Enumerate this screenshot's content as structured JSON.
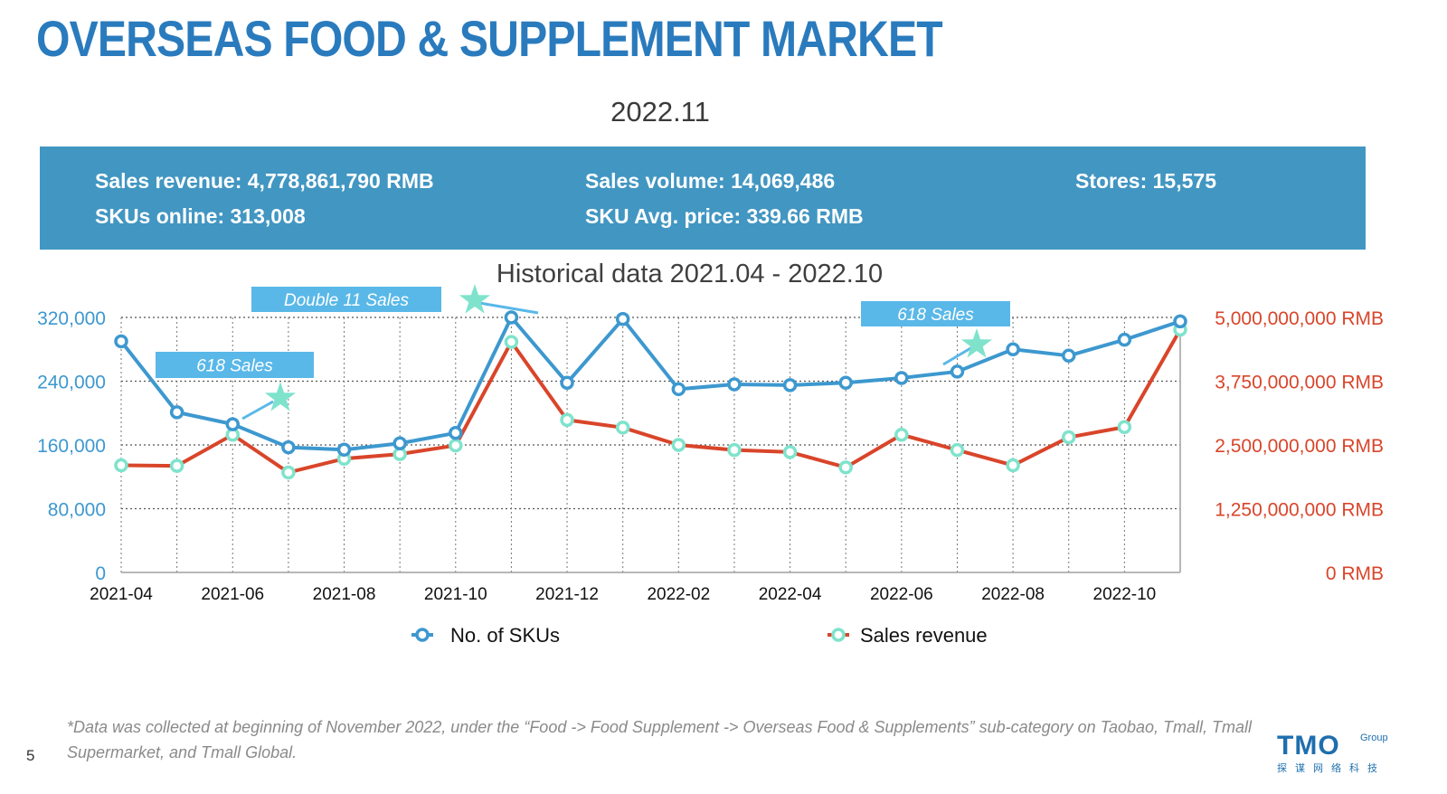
{
  "header": {
    "title": "OVERSEAS FOOD & SUPPLEMENT MARKET",
    "period": "2022.11"
  },
  "stats": {
    "sales_revenue": "Sales revenue: 4,778,861,790 RMB",
    "sales_volume": "Sales volume: 14,069,486",
    "stores": "Stores: 15,575",
    "skus_online": "SKUs online: 313,008",
    "sku_avg_price": "SKU Avg. price: 339.66 RMB"
  },
  "chart_data": {
    "type": "line",
    "title": "Historical data 2021.04 - 2022.10",
    "x": [
      "2021-04",
      "2021-05",
      "2021-06",
      "2021-07",
      "2021-08",
      "2021-09",
      "2021-10",
      "2021-11",
      "2021-12",
      "2022-01",
      "2022-02",
      "2022-03",
      "2022-04",
      "2022-05",
      "2022-06",
      "2022-07",
      "2022-08",
      "2022-09",
      "2022-10",
      "2022-11"
    ],
    "x_tick_labels": [
      "2021-04",
      "2021-06",
      "2021-08",
      "2021-10",
      "2021-12",
      "2022-02",
      "2022-04",
      "2022-06",
      "2022-08",
      "2022-10"
    ],
    "series": [
      {
        "name": "No. of SKUs",
        "axis": "left",
        "color": "#3d98cf",
        "marker_fill": "#ffffff",
        "values": [
          290000,
          201000,
          186000,
          157000,
          154000,
          162000,
          175000,
          320000,
          238000,
          318000,
          230000,
          236000,
          235000,
          238000,
          244000,
          252000,
          280000,
          272000,
          292000,
          315000
        ]
      },
      {
        "name": "Sales revenue",
        "axis": "right",
        "color": "#d9452a",
        "marker_color": "#7fe3cc",
        "values": [
          2100000000,
          2090000000,
          2700000000,
          1960000000,
          2230000000,
          2320000000,
          2490000000,
          4520000000,
          2990000000,
          2840000000,
          2500000000,
          2400000000,
          2360000000,
          2060000000,
          2700000000,
          2400000000,
          2100000000,
          2650000000,
          2850000000,
          4760000000
        ]
      }
    ],
    "y_left": {
      "ylim": [
        0,
        320000
      ],
      "ticks": [
        "0",
        "80,000",
        "160,000",
        "240,000",
        "320,000"
      ],
      "color": "#3d98cf"
    },
    "y_right": {
      "ylim": [
        0,
        5000000000
      ],
      "ticks": [
        "0 RMB",
        "1,250,000,000 RMB",
        "2,500,000,000 RMB",
        "3,750,000,000 RMB",
        "5,000,000,000 RMB"
      ],
      "color": "#d9452a"
    },
    "grid": true,
    "legend": {
      "placement": "bottom",
      "items": [
        "No. of SKUs",
        "Sales revenue"
      ]
    },
    "annotations": [
      {
        "text": "618 Sales",
        "x": "2021-06"
      },
      {
        "text": "Double 11 Sales",
        "x": "2021-11"
      },
      {
        "text": "618 Sales",
        "x": "2022-07"
      }
    ],
    "annotation_color": "#59b8e8",
    "star_color": "#7fe3cc"
  },
  "footer": {
    "footnote": "*Data was collected at beginning of November 2022, under the “Food -> Food Supplement -> Overseas Food & Supplements” sub-category on Taobao, Tmall, Tmall Supermarket, and Tmall Global.",
    "page_number": "5",
    "logo_main": "TMO",
    "logo_group": "Group",
    "logo_sub": "探谋网络科技"
  }
}
